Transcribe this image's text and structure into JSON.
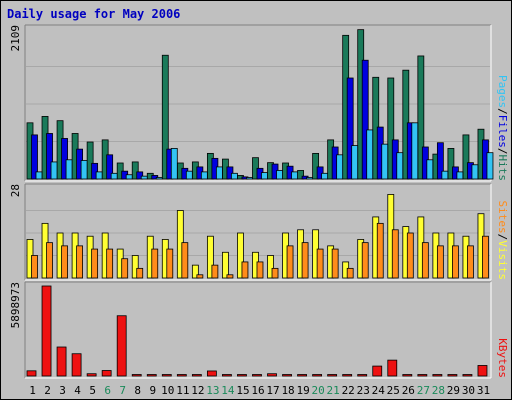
{
  "chart_data": {
    "type": "bar",
    "title": "Daily usage for May 2006",
    "colors": {
      "hits": "#1a7a5a",
      "files": "#0000e0",
      "pages": "#33c4f4",
      "visits": "#ffff33",
      "sites": "#ff8c1a",
      "kbytes": "#ee1111",
      "weekend_day": "#1a8a5a",
      "weekday": "#000000"
    },
    "days": [
      "1",
      "2",
      "3",
      "4",
      "5",
      "6",
      "7",
      "8",
      "9",
      "10",
      "11",
      "12",
      "13",
      "14",
      "15",
      "16",
      "17",
      "18",
      "19",
      "20",
      "21",
      "22",
      "23",
      "24",
      "25",
      "26",
      "27",
      "28",
      "29",
      "30",
      "31"
    ],
    "weekend_days": [
      "6",
      "7",
      "13",
      "14",
      "20",
      "21",
      "27",
      "28"
    ],
    "panels": [
      {
        "id": "hits",
        "max_label": "2109",
        "ymax": 2109,
        "legend": [
          {
            "text": "Pages",
            "color": "#33c4f4"
          },
          {
            "text": "/",
            "color": "#000000"
          },
          {
            "text": "Files",
            "color": "#0000e0"
          },
          {
            "text": "/",
            "color": "#000000"
          },
          {
            "text": "Hits",
            "color": "#1a7a5a"
          }
        ],
        "series": [
          {
            "name": "Hits",
            "color": "#1a7a5a",
            "values": [
              790,
              880,
              820,
              640,
              520,
              550,
              225,
              240,
              80,
              1740,
              225,
              240,
              360,
              280,
              50,
              300,
              230,
              225,
              120,
              360,
              550,
              2020,
              2100,
              1430,
              1420,
              1530,
              1730,
              350,
              430,
              620,
              700
            ]
          },
          {
            "name": "Files",
            "color": "#0000e0",
            "values": [
              620,
              640,
              570,
              420,
              220,
              340,
              110,
              100,
              50,
              420,
              150,
              170,
              290,
              170,
              30,
              150,
              210,
              180,
              40,
              170,
              450,
              1420,
              1670,
              730,
              550,
              790,
              450,
              510,
              170,
              230,
              550
            ]
          },
          {
            "name": "Pages",
            "color": "#33c4f4",
            "values": [
              100,
              240,
              270,
              260,
              100,
              80,
              60,
              40,
              20,
              430,
              110,
              100,
              170,
              80,
              20,
              90,
              120,
              100,
              20,
              80,
              340,
              470,
              690,
              490,
              370,
              790,
              270,
              110,
              100,
              200,
              370
            ]
          }
        ]
      },
      {
        "id": "visits",
        "max_label": "28",
        "ymax": 28,
        "legend": [
          {
            "text": "Sites",
            "color": "#ff8c1a"
          },
          {
            "text": "/",
            "color": "#000000"
          },
          {
            "text": "Visits",
            "color": "#ffff33"
          }
        ],
        "series": [
          {
            "name": "Visits",
            "color": "#ffff33",
            "values": [
              12,
              17,
              14,
              14,
              13,
              14,
              9,
              7,
              13,
              12,
              21,
              4,
              13,
              8,
              14,
              8,
              7,
              14,
              15,
              15,
              10,
              5,
              12,
              19,
              26,
              16,
              19,
              14,
              14,
              13,
              20
            ]
          },
          {
            "name": "Sites",
            "color": "#ff8c1a",
            "values": [
              7,
              11,
              10,
              10,
              9,
              9,
              6,
              3,
              9,
              9,
              11,
              1,
              4,
              1,
              5,
              5,
              3,
              10,
              11,
              9,
              9,
              3,
              11,
              17,
              15,
              14,
              11,
              10,
              10,
              10,
              13
            ]
          }
        ]
      },
      {
        "id": "kbytes",
        "max_label": "5898973",
        "ymax": 5898973,
        "legend": [
          {
            "text": "KBytes",
            "color": "#ee1111"
          }
        ],
        "series": [
          {
            "name": "KBytes",
            "color": "#ee1111",
            "values": [
              340000,
              5898973,
              1900000,
              1460000,
              150000,
              360000,
              3950000,
              50000,
              50000,
              50000,
              50000,
              50000,
              330000,
              50000,
              50000,
              50000,
              150000,
              50000,
              50000,
              50000,
              50000,
              50000,
              50000,
              650000,
              1040000,
              50000,
              50000,
              50000,
              50000,
              50000,
              690000
            ]
          }
        ]
      }
    ]
  }
}
